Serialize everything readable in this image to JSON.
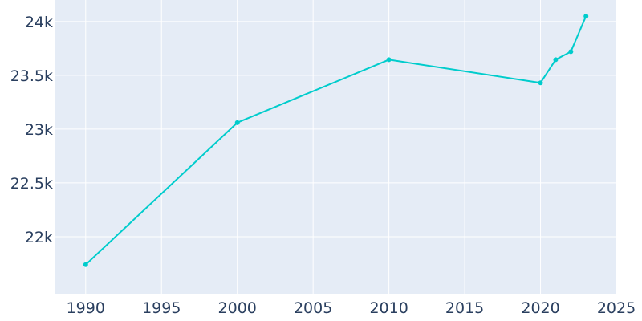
{
  "colors": {
    "plot_background": "#e5ecf6",
    "grid": "#ffffff",
    "line": "#00cccc",
    "tick_text": "#2a3f5f",
    "page_background": "#ffffff"
  },
  "chart_data": {
    "type": "line",
    "title": "",
    "xlabel": "",
    "ylabel": "",
    "x": [
      1990,
      2000,
      2010,
      2020,
      2021,
      2022,
      2023
    ],
    "series": [
      {
        "values": [
          21740,
          23060,
          23645,
          23430,
          23645,
          23720,
          24050
        ],
        "color": "#00cccc",
        "markers": true
      }
    ],
    "xlim": [
      1988,
      2025
    ],
    "ylim": [
      21470,
      24200
    ],
    "x_ticks": [
      1990,
      1995,
      2000,
      2005,
      2010,
      2015,
      2020,
      2025
    ],
    "x_tick_labels": [
      "1990",
      "1995",
      "2000",
      "2005",
      "2010",
      "2015",
      "2020",
      "2025"
    ],
    "y_ticks": [
      22000,
      22500,
      23000,
      23500,
      24000
    ],
    "y_tick_labels": [
      "22k",
      "22.5k",
      "23k",
      "23.5k",
      "24k"
    ],
    "grid": true,
    "legend": "none"
  }
}
